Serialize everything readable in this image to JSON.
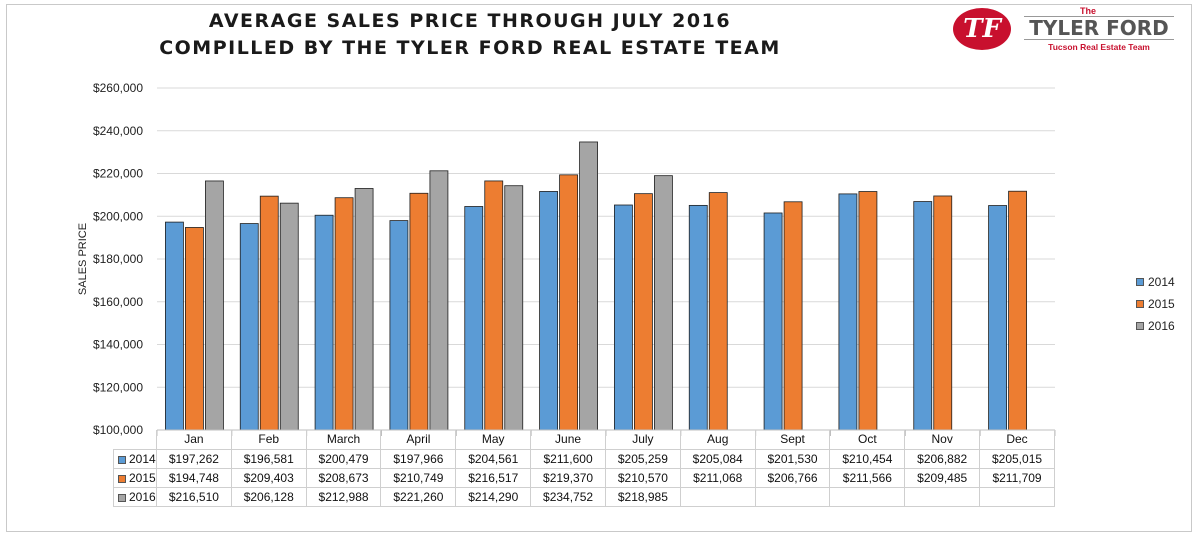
{
  "header": {
    "title_line1": "AVERAGE SALES PRICE THROUGH JULY 2016",
    "title_line2": "COMPILLED BY THE TYLER FORD REAL ESTATE TEAM"
  },
  "logo": {
    "badge": "TF",
    "the": "The",
    "name": "TYLER FORD",
    "subtitle": "Tucson Real Estate Team"
  },
  "chart_data": {
    "type": "bar",
    "title": "AVERAGE SALES PRICE THROUGH JULY 2016",
    "subtitle": "COMPILLED BY THE TYLER FORD REAL ESTATE TEAM",
    "xlabel": "",
    "ylabel": "SALES PRICE",
    "ylim": [
      100000,
      260000
    ],
    "ytick_step": 20000,
    "yticks": [
      "$100,000",
      "$120,000",
      "$140,000",
      "$160,000",
      "$180,000",
      "$200,000",
      "$220,000",
      "$240,000",
      "$260,000"
    ],
    "grid": true,
    "legend_position": "right",
    "categories": [
      "Jan",
      "Feb",
      "March",
      "April",
      "May",
      "June",
      "July",
      "Aug",
      "Sept",
      "Oct",
      "Nov",
      "Dec"
    ],
    "series": [
      {
        "name": "2014",
        "color": "#5b9bd5",
        "values": [
          197262,
          196581,
          200479,
          197966,
          204561,
          211600,
          205259,
          205084,
          201530,
          210454,
          206882,
          205015
        ],
        "labels": [
          "$197,262",
          "$196,581",
          "$200,479",
          "$197,966",
          "$204,561",
          "$211,600",
          "$205,259",
          "$205,084",
          "$201,530",
          "$210,454",
          "$206,882",
          "$205,015"
        ]
      },
      {
        "name": "2015",
        "color": "#ed7d31",
        "values": [
          194748,
          209403,
          208673,
          210749,
          216517,
          219370,
          210570,
          211068,
          206766,
          211566,
          209485,
          211709
        ],
        "labels": [
          "$194,748",
          "$209,403",
          "$208,673",
          "$210,749",
          "$216,517",
          "$219,370",
          "$210,570",
          "$211,068",
          "$206,766",
          "$211,566",
          "$209,485",
          "$211,709"
        ]
      },
      {
        "name": "2016",
        "color": "#a5a5a5",
        "values": [
          216510,
          206128,
          212988,
          221260,
          214290,
          234752,
          218985,
          null,
          null,
          null,
          null,
          null
        ],
        "labels": [
          "$216,510",
          "$206,128",
          "$212,988",
          "$221,260",
          "$214,290",
          "$234,752",
          "$218,985",
          "",
          "",
          "",
          "",
          ""
        ]
      }
    ]
  }
}
